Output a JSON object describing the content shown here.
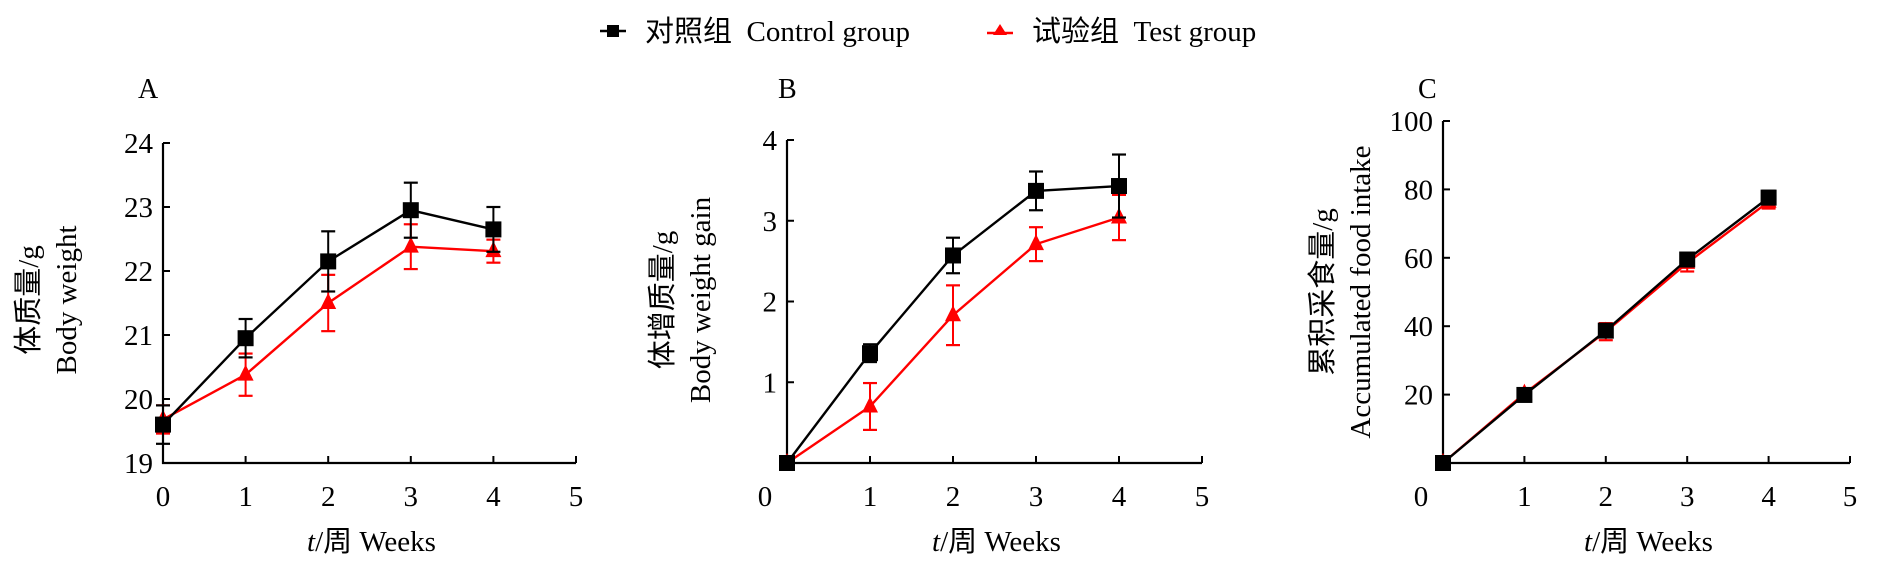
{
  "legend": {
    "items": [
      {
        "label": "对照组  Control group",
        "color": "#000000",
        "marker": "square"
      },
      {
        "label": "试验组  Test group",
        "color": "#ff0000",
        "marker": "triangle"
      }
    ]
  },
  "chart_data": [
    {
      "type": "line",
      "panel": "A",
      "title": "",
      "xlabel": "t/周 Weeks",
      "ylabel_cn": "体质量/g",
      "ylabel_en": "Body weight",
      "x": [
        0,
        1,
        2,
        3,
        4
      ],
      "xlim": [
        0,
        5
      ],
      "ylim": [
        19,
        24
      ],
      "xticks": [
        0,
        1,
        2,
        3,
        4,
        5
      ],
      "yticks": [
        19,
        20,
        21,
        22,
        23,
        24
      ],
      "grid": false,
      "legend": "top-center",
      "series": [
        {
          "name": "对照组 Control group",
          "color": "#000000",
          "marker": "square",
          "values": [
            19.6,
            20.95,
            22.15,
            22.95,
            22.65
          ],
          "errors": [
            0.3,
            0.3,
            0.47,
            0.43,
            0.35
          ]
        },
        {
          "name": "试验组 Test group",
          "color": "#ff0000",
          "marker": "triangle",
          "values": [
            19.68,
            20.38,
            21.5,
            22.38,
            22.31
          ],
          "errors": [
            0.22,
            0.33,
            0.44,
            0.35,
            0.18
          ]
        }
      ]
    },
    {
      "type": "line",
      "panel": "B",
      "title": "",
      "xlabel": "t/周 Weeks",
      "ylabel_cn": "体增质量/g",
      "ylabel_en": "Body weight gain",
      "x": [
        0,
        1,
        2,
        3,
        4
      ],
      "xlim": [
        0,
        5
      ],
      "ylim": [
        0,
        4
      ],
      "xticks": [
        0,
        1,
        2,
        3,
        4,
        5
      ],
      "yticks": [
        1,
        2,
        3,
        4
      ],
      "grid": false,
      "legend": "top-center",
      "series": [
        {
          "name": "对照组 Control group",
          "color": "#000000",
          "marker": "square",
          "values": [
            0,
            1.36,
            2.57,
            3.37,
            3.43
          ],
          "errors": [
            0,
            0.11,
            0.22,
            0.24,
            0.39
          ]
        },
        {
          "name": "试验组 Test group",
          "color": "#ff0000",
          "marker": "triangle",
          "values": [
            0,
            0.7,
            1.83,
            2.71,
            3.04
          ],
          "errors": [
            0,
            0.29,
            0.37,
            0.21,
            0.28
          ]
        }
      ]
    },
    {
      "type": "line",
      "panel": "C",
      "title": "",
      "xlabel": "t/周 Weeks",
      "ylabel_cn": "累积采食量/g",
      "ylabel_en": "Accumulated food intake",
      "x": [
        0,
        1,
        2,
        3,
        4
      ],
      "xlim": [
        0,
        5
      ],
      "ylim": [
        0,
        100
      ],
      "xticks": [
        0,
        1,
        2,
        3,
        4,
        5
      ],
      "yticks": [
        20,
        40,
        60,
        80,
        100
      ],
      "grid": false,
      "legend": "top-center",
      "series": [
        {
          "name": "对照组 Control group",
          "color": "#000000",
          "marker": "square",
          "values": [
            0,
            19.9,
            38.7,
            59.5,
            77.6
          ],
          "errors": [
            0,
            0.8,
            1.5,
            1.3,
            2.0
          ]
        },
        {
          "name": "试验组 Test group",
          "color": "#ff0000",
          "marker": "triangle",
          "values": [
            0,
            20.3,
            38.4,
            58.5,
            76.4
          ],
          "errors": [
            0,
            1.0,
            2.5,
            2.5,
            2.0
          ]
        }
      ]
    }
  ]
}
